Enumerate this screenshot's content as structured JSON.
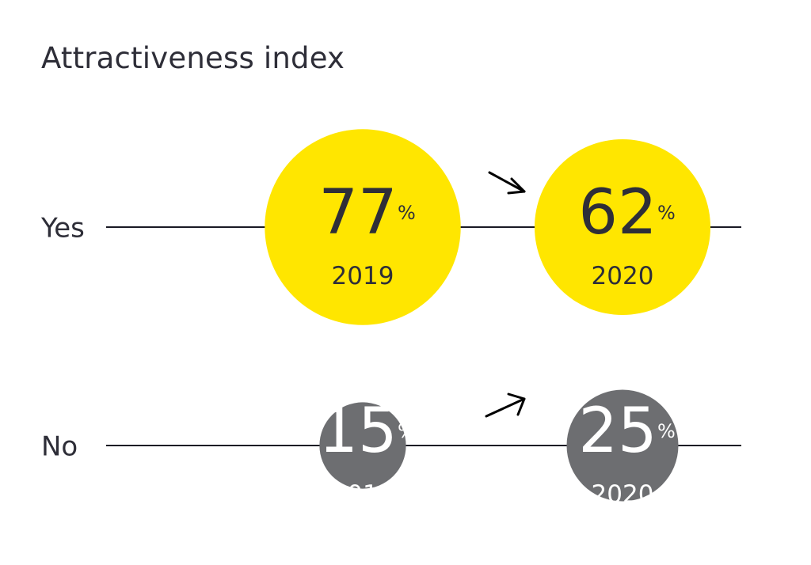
{
  "chart_data": {
    "type": "bubble",
    "title": "Attractiveness index",
    "unit": "%",
    "years": [
      "2019",
      "2020"
    ],
    "rows": [
      {
        "label": "Yes",
        "color": "#ffe600",
        "text_color": "#2e2e38",
        "values": [
          77,
          62
        ]
      },
      {
        "label": "No",
        "color": "#6d6e71",
        "text_color": "#ffffff",
        "values": [
          15,
          25
        ]
      }
    ],
    "line_color": "#1a1a24",
    "arrow_direction": [
      "down-right",
      "up-right"
    ]
  }
}
